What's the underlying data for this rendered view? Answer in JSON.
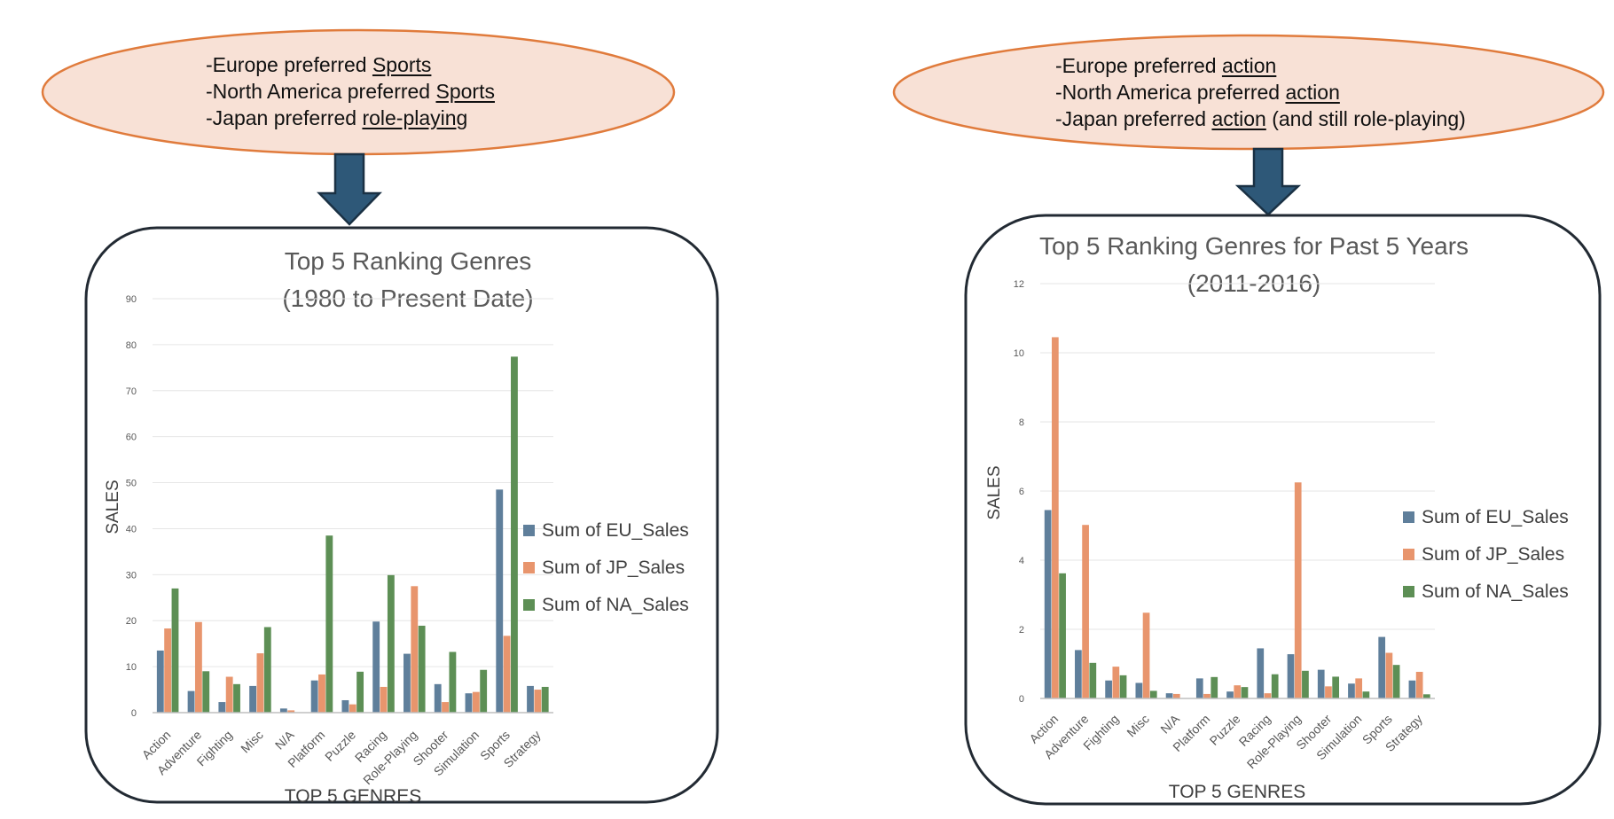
{
  "colors": {
    "eu": "#5f7f9b",
    "jp": "#e8956d",
    "na": "#5d8f55",
    "callout_fill": "#f8e1d6",
    "callout_stroke": "#e07b3c",
    "arrow_fill": "#2e5878",
    "arrow_stroke": "#1a3144",
    "box_stroke": "#222a33"
  },
  "panels": [
    {
      "callout": {
        "lines": [
          {
            "prefix": "-Europe preferred ",
            "emph": "Sports",
            "suffix": ""
          },
          {
            "prefix": "-North America preferred ",
            "emph": "Sports",
            "suffix": ""
          },
          {
            "prefix": "-Japan preferred ",
            "emph": "role-playing",
            "suffix": ""
          }
        ]
      },
      "chart_data": {
        "type": "bar",
        "title_line1": "Top 5 Ranking Genres",
        "title_line2": "(1980 to Present Date)",
        "xlabel": "TOP 5  GENRES",
        "ylabel": "SALES",
        "ylim": [
          0,
          90
        ],
        "yticks": [
          "0",
          "10",
          "20",
          "30",
          "40",
          "50",
          "60",
          "70",
          "80",
          "90"
        ],
        "grid": true,
        "legend_position": "right",
        "categories": [
          "Action",
          "Adventure",
          "Fighting",
          "Misc",
          "N/A",
          "Platform",
          "Puzzle",
          "Racing",
          "Role-Playing",
          "Shooter",
          "Simulation",
          "Sports",
          "Strategy"
        ],
        "series": [
          {
            "name": "Sum of EU_Sales",
            "color_key": "eu",
            "values": [
              13.5,
              4.7,
              2.3,
              5.8,
              0.9,
              7.0,
              2.7,
              19.8,
              12.8,
              6.2,
              4.2,
              48.5,
              5.8
            ]
          },
          {
            "name": "Sum of JP_Sales",
            "color_key": "jp",
            "values": [
              18.3,
              19.7,
              7.8,
              12.9,
              0.5,
              8.3,
              1.8,
              5.6,
              27.5,
              2.3,
              4.5,
              16.7,
              5.0
            ]
          },
          {
            "name": "Sum of NA_Sales",
            "color_key": "na",
            "values": [
              27.0,
              9.0,
              6.2,
              18.6,
              0.0,
              38.5,
              8.9,
              29.9,
              18.9,
              13.2,
              9.3,
              77.4,
              5.6
            ]
          }
        ]
      }
    },
    {
      "callout": {
        "lines": [
          {
            "prefix": "-Europe preferred ",
            "emph": "action",
            "suffix": ""
          },
          {
            "prefix": "-North America preferred ",
            "emph": "action",
            "suffix": ""
          },
          {
            "prefix": "-Japan preferred ",
            "emph": "action",
            "suffix": " (and still role-playing)"
          }
        ]
      },
      "chart_data": {
        "type": "bar",
        "title_line1": "Top 5 Ranking Genres for Past 5 Years",
        "title_line2": "(2011-2016)",
        "xlabel": "TOP 5 GENRES",
        "ylabel": "SALES",
        "ylim": [
          0,
          12
        ],
        "yticks": [
          "0",
          "2",
          "4",
          "6",
          "8",
          "10",
          "12"
        ],
        "grid": true,
        "legend_position": "right",
        "categories": [
          "Action",
          "Adventure",
          "Fighting",
          "Misc",
          "N/A",
          "Platform",
          "Puzzle",
          "Racing",
          "Role-Playing",
          "Shooter",
          "Simulation",
          "Sports",
          "Strategy"
        ],
        "series": [
          {
            "name": "Sum of EU_Sales",
            "color_key": "eu",
            "values": [
              5.45,
              1.4,
              0.52,
              0.45,
              0.15,
              0.58,
              0.2,
              1.45,
              1.28,
              0.83,
              0.43,
              1.78,
              0.52
            ]
          },
          {
            "name": "Sum of JP_Sales",
            "color_key": "jp",
            "values": [
              10.45,
              5.02,
              0.92,
              2.48,
              0.13,
              0.13,
              0.38,
              0.15,
              6.25,
              0.35,
              0.58,
              1.32,
              0.77
            ]
          },
          {
            "name": "Sum of NA_Sales",
            "color_key": "na",
            "values": [
              3.62,
              1.03,
              0.67,
              0.22,
              0.0,
              0.62,
              0.33,
              0.7,
              0.8,
              0.63,
              0.2,
              0.97,
              0.12
            ]
          }
        ]
      }
    }
  ]
}
